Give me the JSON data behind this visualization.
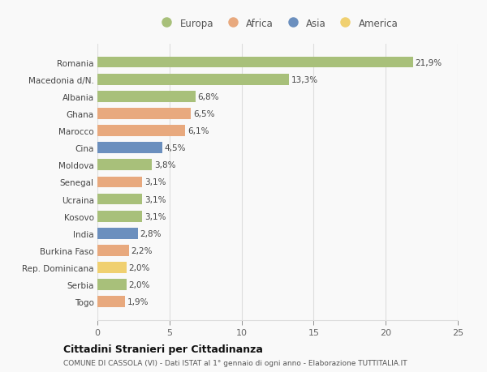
{
  "categories": [
    "Romania",
    "Macedonia d/N.",
    "Albania",
    "Ghana",
    "Marocco",
    "Cina",
    "Moldova",
    "Senegal",
    "Ucraina",
    "Kosovo",
    "India",
    "Burkina Faso",
    "Rep. Dominicana",
    "Serbia",
    "Togo"
  ],
  "values": [
    21.9,
    13.3,
    6.8,
    6.5,
    6.1,
    4.5,
    3.8,
    3.1,
    3.1,
    3.1,
    2.8,
    2.2,
    2.0,
    2.0,
    1.9
  ],
  "labels": [
    "21,9%",
    "13,3%",
    "6,8%",
    "6,5%",
    "6,1%",
    "4,5%",
    "3,8%",
    "3,1%",
    "3,1%",
    "3,1%",
    "2,8%",
    "2,2%",
    "2,0%",
    "2,0%",
    "1,9%"
  ],
  "colors": [
    "#a8c07a",
    "#a8c07a",
    "#a8c07a",
    "#e8a97e",
    "#e8a97e",
    "#6b8fbe",
    "#a8c07a",
    "#e8a97e",
    "#a8c07a",
    "#a8c07a",
    "#6b8fbe",
    "#e8a97e",
    "#f0d070",
    "#a8c07a",
    "#e8a97e"
  ],
  "legend": [
    {
      "label": "Europa",
      "color": "#a8c07a"
    },
    {
      "label": "Africa",
      "color": "#e8a97e"
    },
    {
      "label": "Asia",
      "color": "#6b8fbe"
    },
    {
      "label": "America",
      "color": "#f0d070"
    }
  ],
  "xlim": [
    0,
    25
  ],
  "xticks": [
    0,
    5,
    10,
    15,
    20,
    25
  ],
  "title": "Cittadini Stranieri per Cittadinanza",
  "subtitle": "COMUNE DI CASSOLA (VI) - Dati ISTAT al 1° gennaio di ogni anno - Elaborazione TUTTITALIA.IT",
  "background_color": "#f9f9f9",
  "grid_color": "#dddddd"
}
